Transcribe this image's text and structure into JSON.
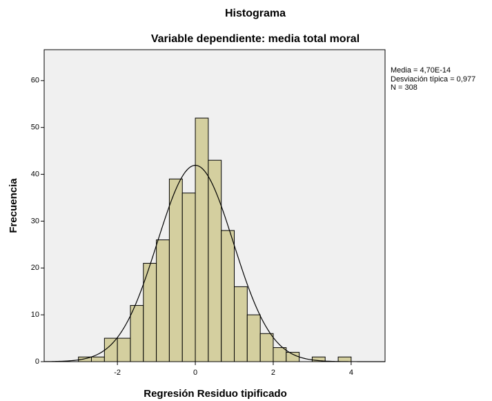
{
  "chart_data": {
    "type": "histogram",
    "title": "Histograma",
    "subtitle": "Variable dependiente: media total moral",
    "x_label": "Regresión Residuo tipificado",
    "y_label": "Frecuencia",
    "bins": [
      -3,
      -2.667,
      -2.333,
      -2,
      -1.667,
      -1.333,
      -1,
      -0.667,
      -0.333,
      0,
      0.333,
      0.667,
      1,
      1.333,
      1.667,
      2,
      2.333,
      2.667,
      3,
      3.333,
      3.667,
      4
    ],
    "values": [
      1,
      1,
      5,
      5,
      12,
      21,
      26,
      39,
      36,
      52,
      43,
      28,
      16,
      10,
      6,
      3,
      2,
      0,
      1,
      0,
      1
    ],
    "color": "#d4cf9f",
    "xlim": [
      -3.88,
      4.87
    ],
    "ylim": [
      0,
      66.6
    ],
    "xticks": [
      -2,
      0,
      2,
      4
    ],
    "yticks": [
      0,
      10,
      20,
      30,
      40,
      50,
      60
    ],
    "stats": {
      "mean": {
        "value": 4.7e-14,
        "label": "Media = 4,70E-14"
      },
      "sd": {
        "value": 0.977,
        "label": "Desviación típica = 0,977"
      },
      "n": {
        "value": 308,
        "label": "N = 308"
      }
    },
    "normal_curve": true
  }
}
